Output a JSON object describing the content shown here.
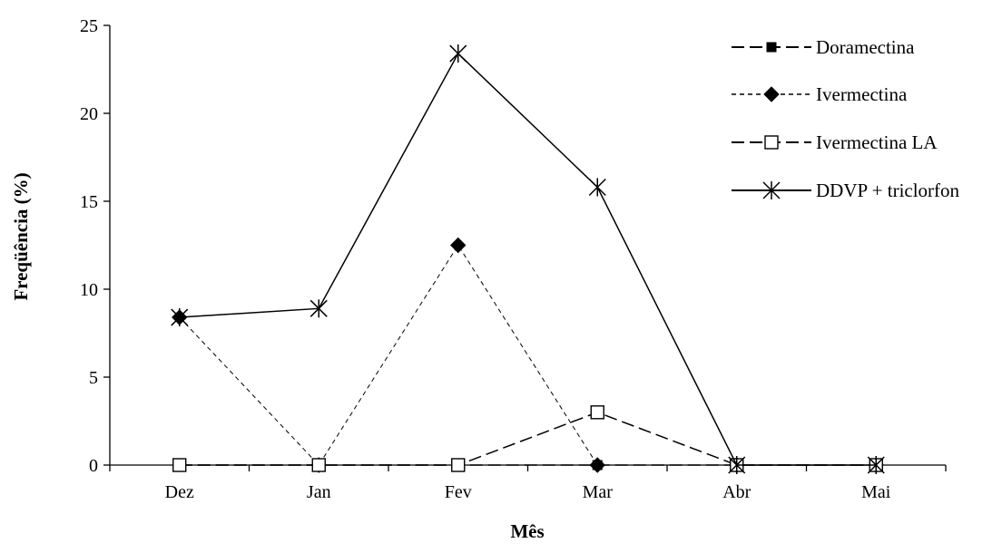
{
  "chart_data": {
    "type": "line",
    "title": "",
    "xlabel": "Mês",
    "ylabel": "Freqüência (%)",
    "categories": [
      "Dez",
      "Jan",
      "Fev",
      "Mar",
      "Abr",
      "Mai"
    ],
    "ylim": [
      0,
      25
    ],
    "yticks": [
      0,
      5,
      10,
      15,
      20,
      25
    ],
    "grid": false,
    "legend_position": "top-right",
    "series": [
      {
        "name": "Doramectina",
        "values": [
          0,
          0,
          0,
          0,
          0,
          0
        ],
        "color": "#000000",
        "line_style": "dashed",
        "marker": "filled-square"
      },
      {
        "name": "Ivermectina",
        "values": [
          8.4,
          0,
          12.5,
          0,
          0,
          0
        ],
        "color": "#000000",
        "line_style": "dotted",
        "marker": "filled-diamond"
      },
      {
        "name": "Ivermectina LA",
        "values": [
          0,
          0,
          0,
          3.0,
          0,
          0
        ],
        "color": "#000000",
        "line_style": "dashed",
        "marker": "open-square"
      },
      {
        "name": "DDVP + triclorfon",
        "values": [
          8.4,
          8.9,
          23.4,
          15.8,
          0,
          0
        ],
        "color": "#000000",
        "line_style": "solid",
        "marker": "star"
      }
    ]
  }
}
